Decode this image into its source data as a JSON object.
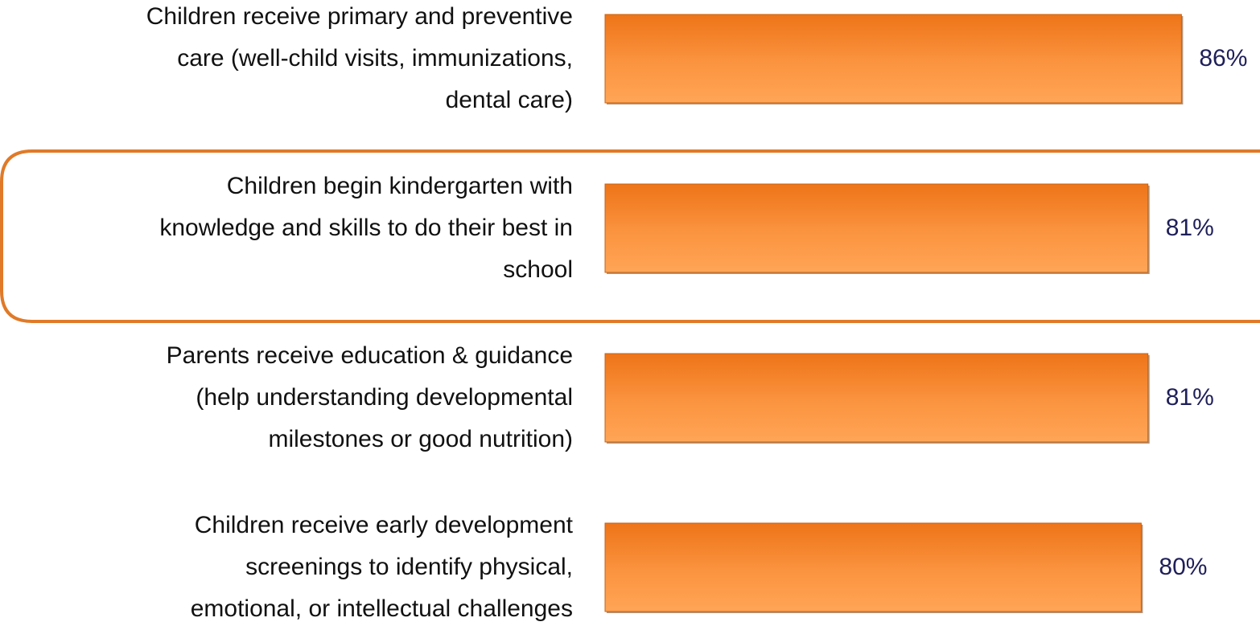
{
  "chart_data": {
    "type": "bar",
    "orientation": "horizontal",
    "categories": [
      "Children receive primary and preventive\ncare (well-child visits, immunizations,\ndental care)",
      "Children begin kindergarten with\nknowledge and skills to do their best in\nschool",
      "Parents receive education & guidance\n(help understanding developmental\nmilestones or good nutrition)",
      "Children receive early development\nscreenings to identify physical,\nemotional, or intellectual challenges"
    ],
    "values": [
      86,
      81,
      81,
      80
    ],
    "value_labels": [
      "86%",
      "81%",
      "81%",
      "80%"
    ],
    "color": "#f58220"
  }
}
